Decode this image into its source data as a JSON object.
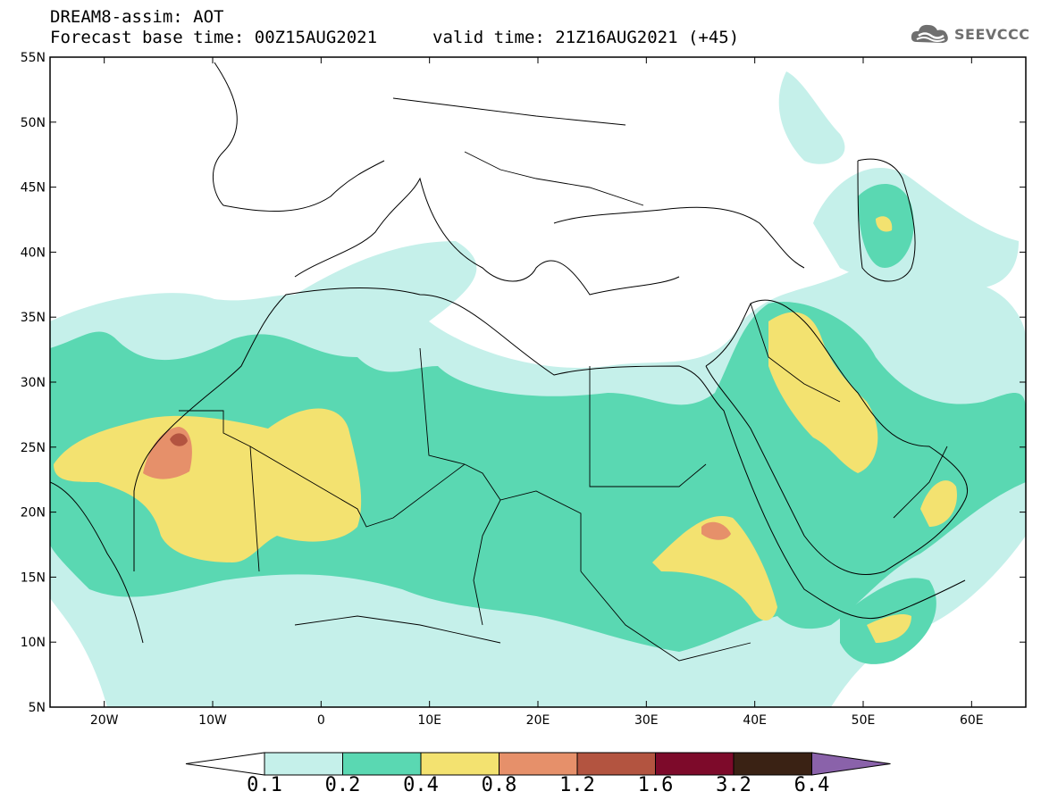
{
  "header": {
    "title_line1": "DREAM8-assim: AOT",
    "title_line2": "Forecast base time: 00Z15AUG2021",
    "valid_time": "valid time: 21Z16AUG2021 (+45)"
  },
  "logo": {
    "text": "SEEVCCC",
    "icon": "cloud-icon"
  },
  "map": {
    "lon_range": [
      -25,
      65
    ],
    "lat_range": [
      5,
      55
    ],
    "lat_ticks": [
      "55N",
      "50N",
      "45N",
      "40N",
      "35N",
      "30N",
      "25N",
      "20N",
      "15N",
      "10N",
      "5N"
    ],
    "lon_ticks": [
      "20W",
      "10W",
      "0",
      "10E",
      "20E",
      "30E",
      "40E",
      "50E",
      "60E"
    ]
  },
  "colorbar": {
    "labels": [
      "0.1",
      "0.2",
      "0.4",
      "0.8",
      "1.2",
      "1.6",
      "3.2",
      "6.4"
    ],
    "colors": [
      "#ffffff",
      "#c5f0ea",
      "#5ad8b2",
      "#f3e270",
      "#e6906a",
      "#b35440",
      "#7d0a2a",
      "#3a2214",
      "#8a62aa"
    ]
  }
}
